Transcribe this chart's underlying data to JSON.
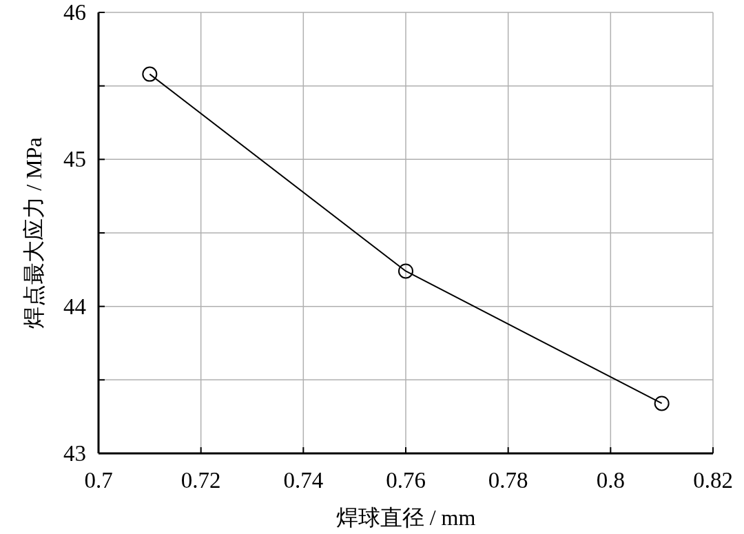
{
  "chart_data": {
    "type": "line",
    "xlabel": "焊球直径 / mm",
    "ylabel": "焊点最大应力 / MPa",
    "x": [
      0.71,
      0.76,
      0.81
    ],
    "series": [
      {
        "color": "#000000",
        "values": [
          45.58,
          44.24,
          43.34
        ]
      }
    ],
    "xlim": [
      0.7,
      0.82
    ],
    "xticks": [
      0.7,
      0.72,
      0.74,
      0.76,
      0.78,
      0.8,
      0.82
    ],
    "ylim": [
      43,
      46
    ],
    "yticks": [
      43,
      {
        "value": 43.5,
        "label": null
      },
      44,
      {
        "value": 44.5,
        "label": null
      },
      45,
      {
        "value": 45.5,
        "label": null
      },
      46
    ],
    "grid": true,
    "marker": "circle",
    "line_style": "solid"
  }
}
